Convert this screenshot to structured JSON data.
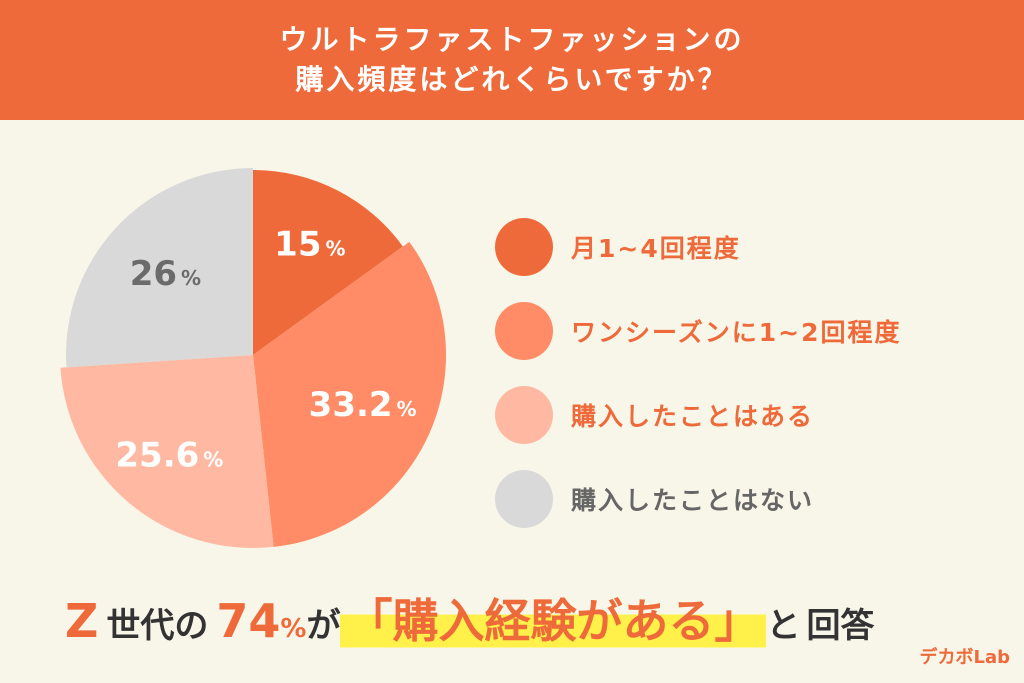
{
  "header": {
    "line1": "ウルトラファストファッションの",
    "line2": "購入頻度はどれくらいですか？"
  },
  "chart_data": {
    "type": "pie",
    "title": "ウルトラファストファッションの購入頻度はどれくらいですか？",
    "categories": [
      "月1~4回程度",
      "ワンシーズンに1~2回程度",
      "購入したことはある",
      "購入したことはない"
    ],
    "values": [
      15,
      33.2,
      25.6,
      26
    ],
    "labels": [
      "15",
      "33.2",
      "25.6",
      "26"
    ],
    "percent_sign": "%",
    "colors": [
      "#ee6a3a",
      "#ff8c66",
      "#ffb9a2",
      "#d9d9d9"
    ],
    "label_colors": [
      "#ffffff",
      "#ffffff",
      "#ffffff",
      "#6b6b6b"
    ],
    "legend_text_colors": [
      "#ee6a3a",
      "#ee6a3a",
      "#ee6a3a",
      "#666666"
    ],
    "legend_position": "right",
    "start": "top-clockwise"
  },
  "conclusion": {
    "z": "Z",
    "gen": "世代",
    "no": "の",
    "num": "74",
    "pct": "%",
    "ga": "が",
    "open": "「",
    "phrase": "購入経験がある",
    "close": "」",
    "to": "と",
    "answer": "回答"
  },
  "logo": "デカボLab"
}
